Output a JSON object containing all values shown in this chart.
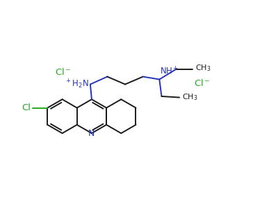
{
  "bg_color": "#ffffff",
  "bond_color": "#1a1a1a",
  "nitrogen_color": "#2233bb",
  "chlorine_label_color": "#22aa22",
  "cl_atom_color": "#22aa22",
  "line_width": 1.4,
  "figsize": [
    4.0,
    3.0
  ],
  "dpi": 100,
  "xlim": [
    0,
    10
  ],
  "ylim": [
    -1,
    5.5
  ]
}
